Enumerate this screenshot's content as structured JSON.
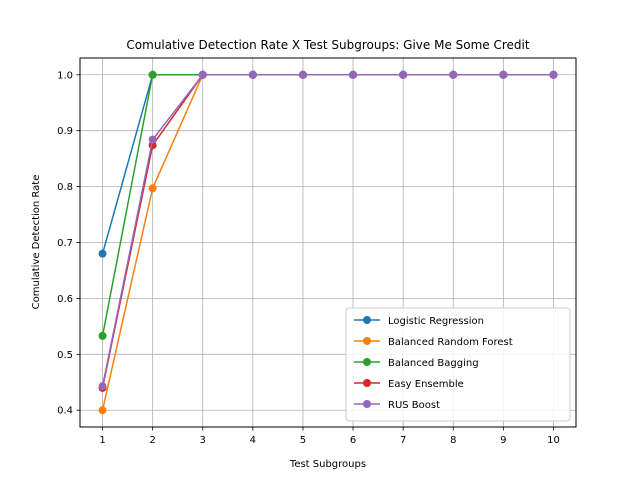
{
  "chart_data": {
    "type": "line",
    "title": "Comulative Detection Rate X Test Subgroups: Give Me Some Credit",
    "xlabel": "Test Subgroups",
    "ylabel": "Comulative Detection Rate",
    "x": [
      1,
      2,
      3,
      4,
      5,
      6,
      7,
      8,
      9,
      10
    ],
    "xlim": [
      0.55,
      10.45
    ],
    "ylim": [
      0.37,
      1.03
    ],
    "yticks": [
      0.4,
      0.5,
      0.6,
      0.7,
      0.8,
      0.9,
      1.0
    ],
    "ytick_labels": [
      "0.4",
      "0.5",
      "0.6",
      "0.7",
      "0.8",
      "0.9",
      "1.0"
    ],
    "xtick_labels": [
      "1",
      "2",
      "3",
      "4",
      "5",
      "6",
      "7",
      "8",
      "9",
      "10"
    ],
    "grid": true,
    "legend_position": "bottom-right",
    "series": [
      {
        "name": "Logistic Regression",
        "color": "#1f77b4",
        "values": [
          0.68,
          1.0,
          1.0,
          1.0,
          1.0,
          1.0,
          1.0,
          1.0,
          1.0,
          1.0
        ]
      },
      {
        "name": "Balanced Random Forest",
        "color": "#ff7f0e",
        "values": [
          0.4,
          0.797,
          1.0,
          1.0,
          1.0,
          1.0,
          1.0,
          1.0,
          1.0,
          1.0
        ]
      },
      {
        "name": "Balanced Bagging",
        "color": "#2ca02c",
        "values": [
          0.533,
          1.0,
          1.0,
          1.0,
          1.0,
          1.0,
          1.0,
          1.0,
          1.0,
          1.0
        ]
      },
      {
        "name": "Easy Ensemble",
        "color": "#d62728",
        "values": [
          0.44,
          0.874,
          1.0,
          1.0,
          1.0,
          1.0,
          1.0,
          1.0,
          1.0,
          1.0
        ]
      },
      {
        "name": "RUS Boost",
        "color": "#9467bd",
        "values": [
          0.443,
          0.884,
          1.0,
          1.0,
          1.0,
          1.0,
          1.0,
          1.0,
          1.0,
          1.0
        ]
      }
    ]
  }
}
